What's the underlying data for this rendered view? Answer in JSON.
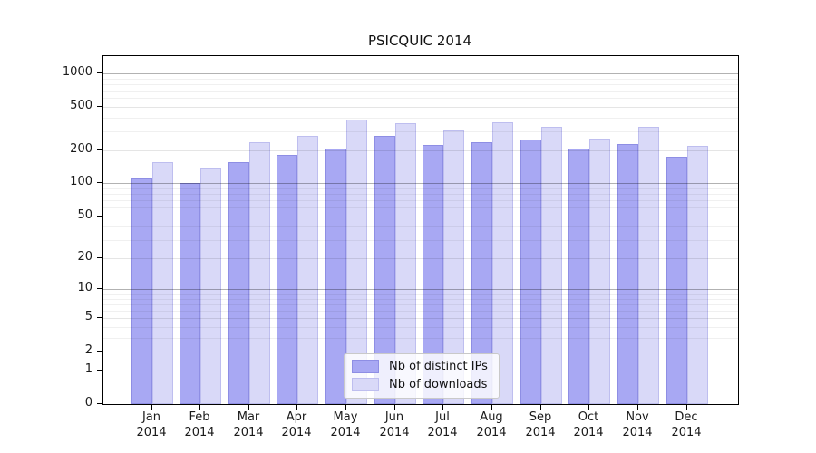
{
  "title": "PSICQUIC 2014",
  "chart_data": {
    "type": "bar",
    "title": "PSICQUIC 2014",
    "x_axis": {
      "months": [
        "Jan",
        "Feb",
        "Mar",
        "Apr",
        "May",
        "Jun",
        "Jul",
        "Aug",
        "Sep",
        "Oct",
        "Nov",
        "Dec"
      ],
      "year": "2014"
    },
    "y_axis": {
      "scale": "log(value+1)",
      "labeled_ticks": [
        1000,
        500,
        200,
        100,
        50,
        20,
        10,
        5,
        2,
        1,
        0
      ],
      "power_of_ten_ticks": [
        1000,
        100,
        10,
        1
      ],
      "minor_ticks": [
        900,
        800,
        700,
        600,
        400,
        300,
        90,
        80,
        70,
        60,
        40,
        30,
        9,
        8,
        7,
        6,
        4,
        3
      ],
      "top_value": 1400,
      "grid": true
    },
    "series": [
      {
        "name": "Nb of distinct IPs",
        "color": "#a8a8f3",
        "values": [
          112,
          101,
          156,
          182,
          209,
          270,
          225,
          238,
          252,
          207,
          228,
          177
        ]
      },
      {
        "name": "Nb of downloads",
        "color": "#d9d9f8",
        "values": [
          158,
          139,
          238,
          274,
          385,
          353,
          303,
          362,
          329,
          257,
          328,
          221
        ]
      }
    ],
    "legend": {
      "position": "bottom-center-inside"
    }
  }
}
